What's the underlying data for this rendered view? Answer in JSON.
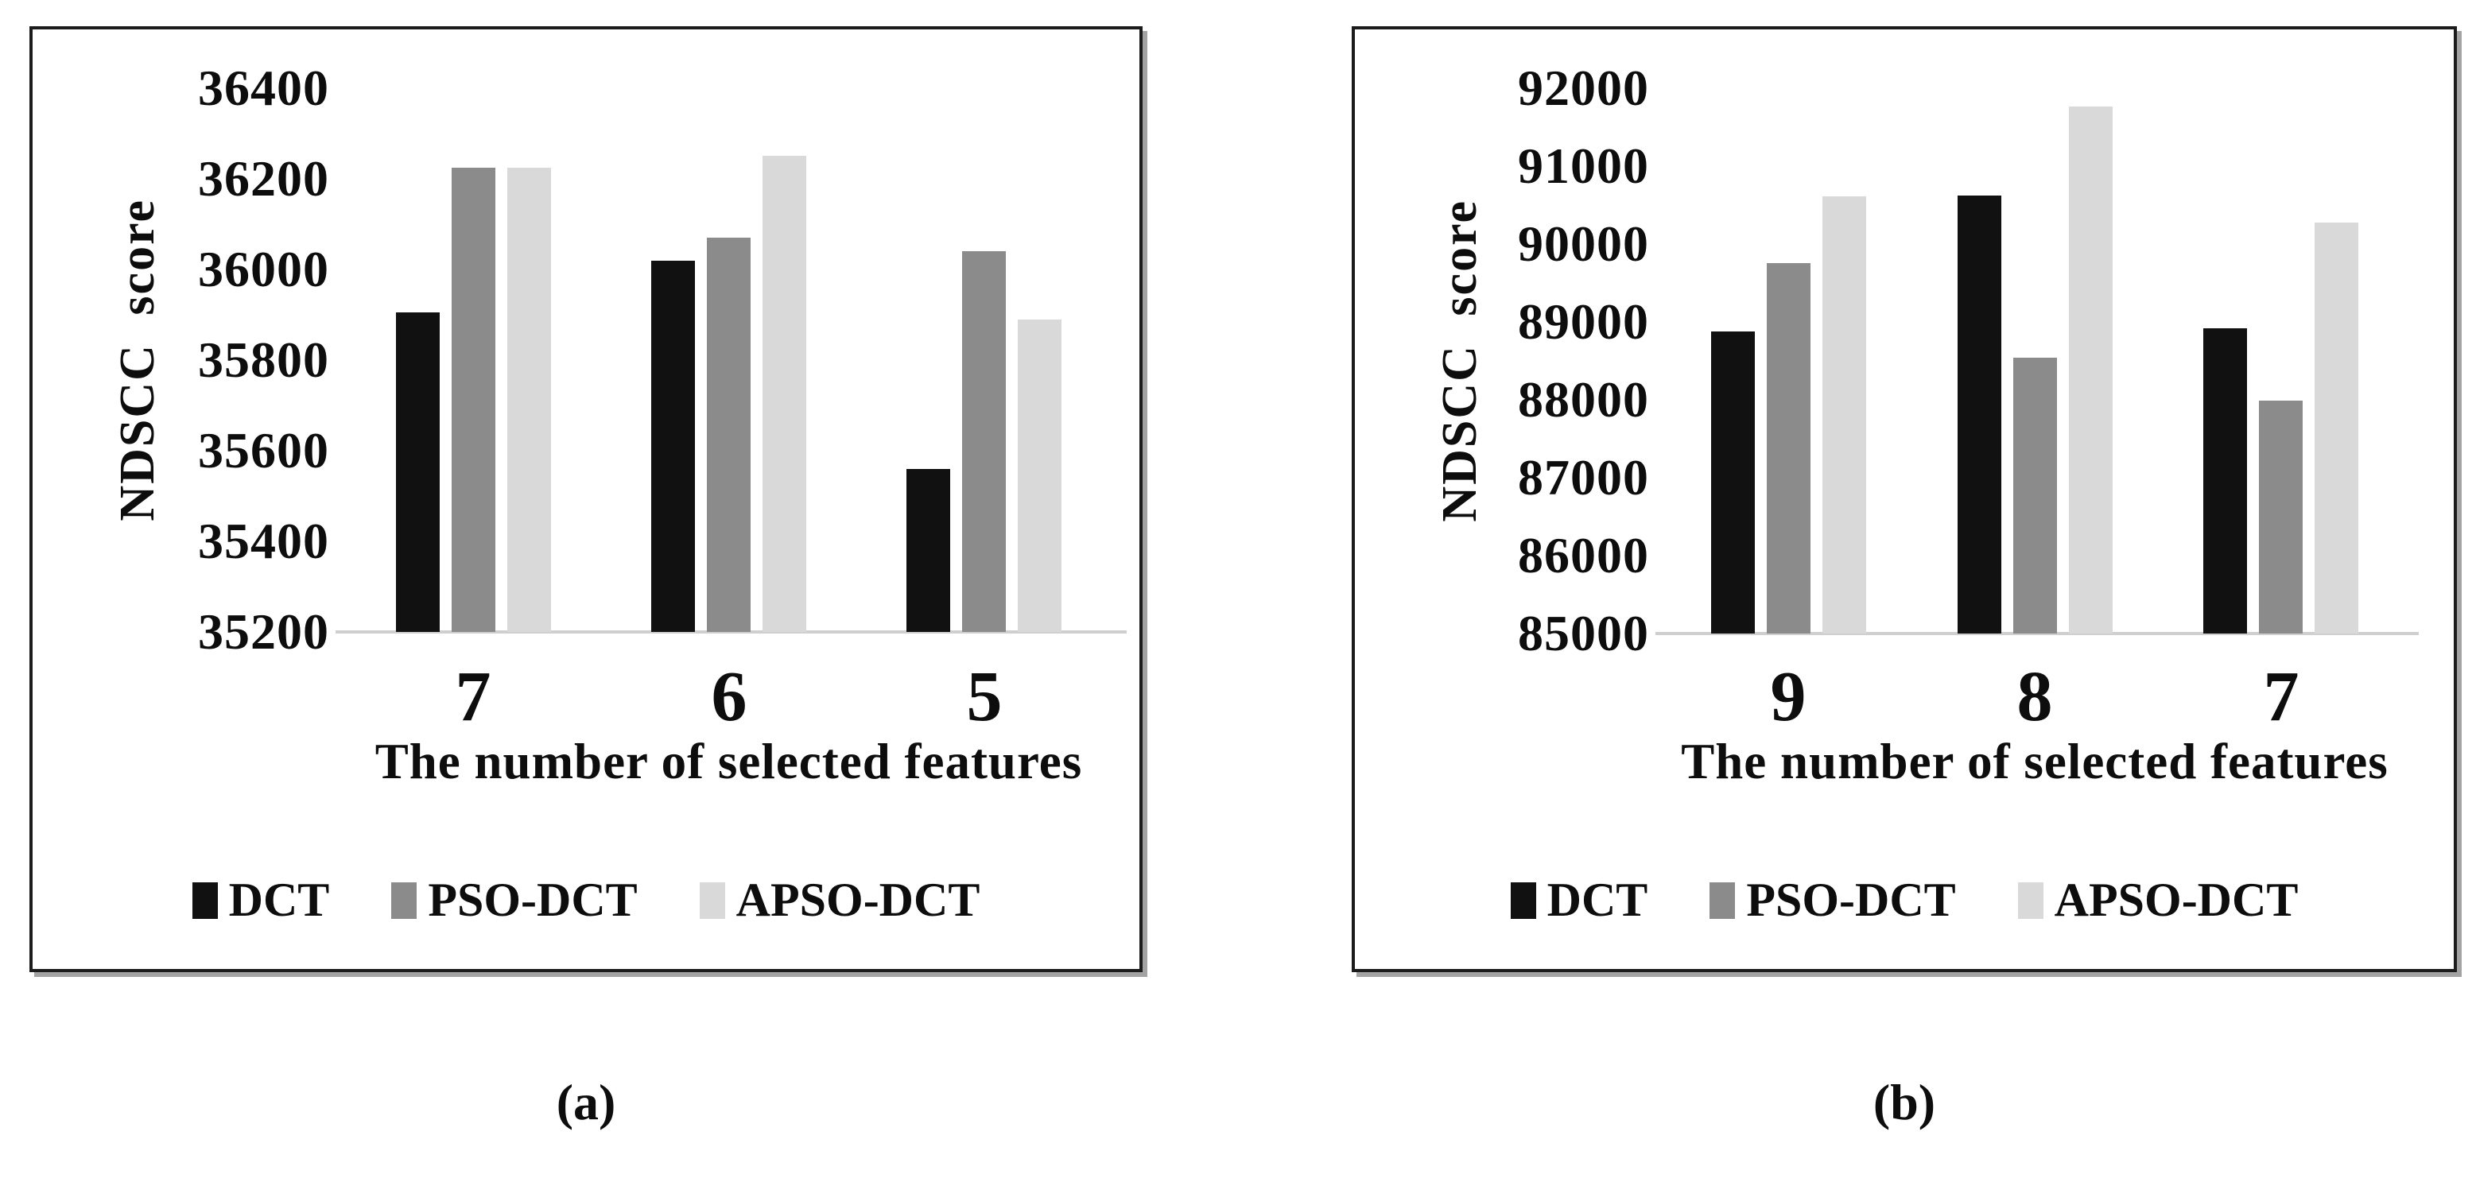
{
  "figure": {
    "y_axis_label": "NDSCC score",
    "x_axis_label": "The number of selected features",
    "legend_labels": [
      "DCT",
      "PSO-DCT",
      "APSO-DCT"
    ],
    "caption_a": "(a)",
    "caption_b": "(b)",
    "colors": {
      "dct": "#111111",
      "pso_dct": "#8b8b8b",
      "apso_dct": "#d9d9d9",
      "axis_line": "#cfcfcf"
    }
  },
  "chart_data": [
    {
      "type": "bar",
      "panel": "a",
      "caption": "(a)",
      "title": "",
      "ylabel": "NDSCC score",
      "xlabel": "The number of selected features",
      "categories": [
        "7",
        "6",
        "5"
      ],
      "yticks": [
        36400,
        36200,
        36000,
        35800,
        35600,
        35400,
        35200
      ],
      "ylim": [
        35200,
        36400
      ],
      "grid": false,
      "legend_position": "bottom",
      "series": [
        {
          "name": "DCT",
          "color": "#111111",
          "values": [
            35905,
            36020,
            35560
          ]
        },
        {
          "name": "PSO-DCT",
          "color": "#8b8b8b",
          "values": [
            36225,
            36070,
            36040
          ]
        },
        {
          "name": "APSO-DCT",
          "color": "#d9d9d9",
          "values": [
            36225,
            36250,
            35890
          ]
        }
      ]
    },
    {
      "type": "bar",
      "panel": "b",
      "caption": "(b)",
      "title": "",
      "ylabel": "NDSCC score",
      "xlabel": "The number of selected features",
      "categories": [
        "9",
        "8",
        "7"
      ],
      "yticks": [
        92000,
        91000,
        90000,
        89000,
        88000,
        87000,
        86000,
        85000
      ],
      "ylim": [
        85000,
        92000
      ],
      "grid": false,
      "legend_position": "bottom",
      "series": [
        {
          "name": "DCT",
          "color": "#111111",
          "values": [
            88880,
            90620,
            88920
          ]
        },
        {
          "name": "PSO-DCT",
          "color": "#8b8b8b",
          "values": [
            89760,
            88540,
            87990
          ]
        },
        {
          "name": "APSO-DCT",
          "color": "#d9d9d9",
          "values": [
            90610,
            91770,
            90280
          ]
        }
      ]
    }
  ]
}
